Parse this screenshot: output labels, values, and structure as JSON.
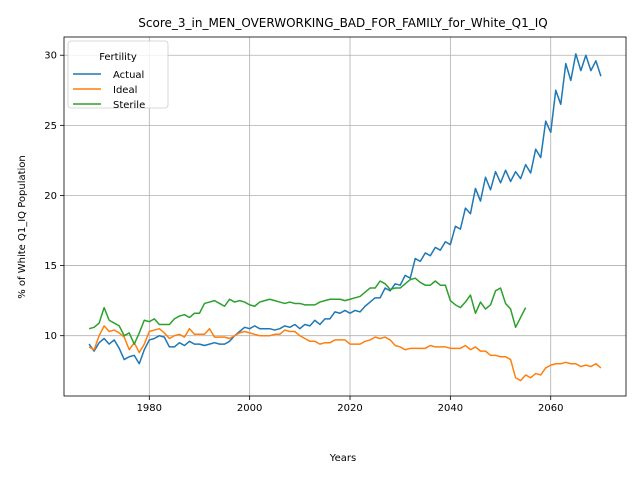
{
  "chart_data": {
    "type": "line",
    "title": "Score_3_in_MEN_OVERWORKING_BAD_FOR_FAMILY_for_White_Q1_IQ",
    "xlabel": "Years",
    "ylabel": "% of White Q1_IQ Population",
    "xlim": [
      1963,
      2075
    ],
    "ylim": [
      5.7,
      31.3
    ],
    "xticks": [
      1980,
      2000,
      2020,
      2040,
      2060
    ],
    "yticks": [
      10,
      15,
      20,
      25,
      30
    ],
    "grid": true,
    "legend": {
      "title": "Fertility",
      "placement": "top-left"
    },
    "series": [
      {
        "name": "Actual",
        "color": "#1f77b4",
        "x": [
          1968,
          1969,
          1970,
          1971,
          1972,
          1973,
          1974,
          1975,
          1976,
          1977,
          1978,
          1979,
          1980,
          1981,
          1982,
          1983,
          1984,
          1985,
          1986,
          1987,
          1988,
          1989,
          1990,
          1991,
          1992,
          1993,
          1994,
          1995,
          1996,
          1997,
          1998,
          1999,
          2000,
          2001,
          2002,
          2003,
          2004,
          2005,
          2006,
          2007,
          2008,
          2009,
          2010,
          2011,
          2012,
          2013,
          2014,
          2015,
          2016,
          2017,
          2018,
          2019,
          2020,
          2021,
          2022,
          2023,
          2024,
          2025,
          2026,
          2027,
          2028,
          2029,
          2030,
          2031,
          2032,
          2033,
          2034,
          2035,
          2036,
          2037,
          2038,
          2039,
          2040,
          2041,
          2042,
          2043,
          2044,
          2045,
          2046,
          2047,
          2048,
          2049,
          2050,
          2051,
          2052,
          2053,
          2054,
          2055,
          2056,
          2057,
          2058,
          2059,
          2060,
          2061,
          2062,
          2063,
          2064,
          2065,
          2066,
          2067,
          2068,
          2069,
          2070
        ],
        "values": [
          9.4,
          8.9,
          9.5,
          9.8,
          9.4,
          9.7,
          9.1,
          8.3,
          8.5,
          8.6,
          8.0,
          9.0,
          9.7,
          9.8,
          10.0,
          9.9,
          9.2,
          9.2,
          9.5,
          9.3,
          9.6,
          9.4,
          9.4,
          9.3,
          9.4,
          9.5,
          9.4,
          9.4,
          9.6,
          10.0,
          10.3,
          10.6,
          10.5,
          10.7,
          10.5,
          10.5,
          10.5,
          10.4,
          10.5,
          10.7,
          10.6,
          10.8,
          10.5,
          10.8,
          10.7,
          11.1,
          10.8,
          11.2,
          11.2,
          11.7,
          11.6,
          11.8,
          11.6,
          11.8,
          11.7,
          12.1,
          12.4,
          12.7,
          12.7,
          13.4,
          13.2,
          13.7,
          13.6,
          14.3,
          14.1,
          15.5,
          15.3,
          15.9,
          15.7,
          16.3,
          16.1,
          16.7,
          16.5,
          17.8,
          17.6,
          19.1,
          18.7,
          20.5,
          19.6,
          21.3,
          20.4,
          21.7,
          20.9,
          21.8,
          21.0,
          21.7,
          21.2,
          22.2,
          21.6,
          23.3,
          22.7,
          25.3,
          24.5,
          27.5,
          26.5,
          29.4,
          28.2,
          30.1,
          28.9,
          30.0,
          28.9,
          29.6,
          28.5
        ]
      },
      {
        "name": "Ideal",
        "color": "#ff7f0e",
        "x": [
          1968,
          1969,
          1970,
          1971,
          1972,
          1973,
          1974,
          1975,
          1976,
          1977,
          1978,
          1979,
          1980,
          1981,
          1982,
          1983,
          1984,
          1985,
          1986,
          1987,
          1988,
          1989,
          1990,
          1991,
          1992,
          1993,
          1994,
          1995,
          1996,
          1997,
          1998,
          1999,
          2000,
          2001,
          2002,
          2003,
          2004,
          2005,
          2006,
          2007,
          2008,
          2009,
          2010,
          2011,
          2012,
          2013,
          2014,
          2015,
          2016,
          2017,
          2018,
          2019,
          2020,
          2021,
          2022,
          2023,
          2024,
          2025,
          2026,
          2027,
          2028,
          2029,
          2030,
          2031,
          2032,
          2033,
          2034,
          2035,
          2036,
          2037,
          2038,
          2039,
          2040,
          2041,
          2042,
          2043,
          2044,
          2045,
          2046,
          2047,
          2048,
          2049,
          2050,
          2051,
          2052,
          2053,
          2054,
          2055,
          2056,
          2057,
          2058,
          2059,
          2060,
          2061,
          2062,
          2063,
          2064,
          2065,
          2066,
          2067,
          2068,
          2069,
          2070
        ],
        "values": [
          9.2,
          9.0,
          10.0,
          10.7,
          10.3,
          10.4,
          10.2,
          9.9,
          9.0,
          9.5,
          8.8,
          9.4,
          10.3,
          10.4,
          10.5,
          10.2,
          9.8,
          10.0,
          10.1,
          9.9,
          10.5,
          10.1,
          10.1,
          10.1,
          10.5,
          9.9,
          9.9,
          9.9,
          9.8,
          10.0,
          10.2,
          10.3,
          10.2,
          10.1,
          10.0,
          10.0,
          10.0,
          10.1,
          10.1,
          10.4,
          10.3,
          10.3,
          10.0,
          9.8,
          9.6,
          9.6,
          9.4,
          9.5,
          9.5,
          9.7,
          9.7,
          9.7,
          9.4,
          9.4,
          9.4,
          9.6,
          9.7,
          9.9,
          9.8,
          9.9,
          9.7,
          9.3,
          9.2,
          9.0,
          9.1,
          9.1,
          9.1,
          9.1,
          9.3,
          9.2,
          9.2,
          9.2,
          9.1,
          9.1,
          9.1,
          9.3,
          9.0,
          9.2,
          8.9,
          8.9,
          8.6,
          8.6,
          8.5,
          8.5,
          8.3,
          7.0,
          6.8,
          7.2,
          7.0,
          7.3,
          7.2,
          7.7,
          7.9,
          8.0,
          8.0,
          8.1,
          8.0,
          8.0,
          7.8,
          7.9,
          7.8,
          8.0,
          7.7
        ]
      },
      {
        "name": "Sterile",
        "color": "#2ca02c",
        "x": [
          1968,
          1969,
          1970,
          1971,
          1972,
          1973,
          1974,
          1975,
          1976,
          1977,
          1978,
          1979,
          1980,
          1981,
          1982,
          1983,
          1984,
          1985,
          1986,
          1987,
          1988,
          1989,
          1990,
          1991,
          1992,
          1993,
          1994,
          1995,
          1996,
          1997,
          1998,
          1999,
          2000,
          2001,
          2002,
          2003,
          2004,
          2005,
          2006,
          2007,
          2008,
          2009,
          2010,
          2011,
          2012,
          2013,
          2014,
          2015,
          2016,
          2017,
          2018,
          2019,
          2020,
          2021,
          2022,
          2023,
          2024,
          2025,
          2026,
          2027,
          2028,
          2029,
          2030,
          2031,
          2032,
          2033,
          2034,
          2035,
          2036,
          2037,
          2038,
          2039,
          2040,
          2041,
          2042,
          2043,
          2044,
          2045,
          2046,
          2047,
          2048,
          2049,
          2050,
          2051,
          2052,
          2053,
          2054,
          2055,
          2056
        ],
        "values": [
          10.5,
          10.6,
          10.9,
          12.0,
          11.1,
          10.9,
          10.7,
          10.0,
          10.2,
          9.4,
          10.2,
          11.1,
          11.0,
          11.2,
          10.8,
          10.8,
          10.8,
          11.2,
          11.4,
          11.5,
          11.3,
          11.6,
          11.6,
          12.3,
          12.4,
          12.5,
          12.3,
          12.1,
          12.6,
          12.4,
          12.5,
          12.4,
          12.2,
          12.1,
          12.4,
          12.5,
          12.6,
          12.5,
          12.4,
          12.3,
          12.4,
          12.3,
          12.3,
          12.2,
          12.2,
          12.2,
          12.4,
          12.5,
          12.6,
          12.6,
          12.6,
          12.5,
          12.6,
          12.7,
          12.8,
          13.1,
          13.4,
          13.4,
          13.9,
          13.7,
          13.3,
          13.4,
          13.4,
          13.7,
          14.0,
          14.1,
          13.8,
          13.6,
          13.6,
          13.9,
          13.6,
          13.6,
          12.5,
          12.2,
          12.0,
          12.4,
          12.9,
          11.6,
          12.4,
          11.9,
          12.2,
          13.2,
          13.4,
          12.3,
          11.9,
          10.6,
          11.3,
          12.0,
          null
        ]
      }
    ]
  }
}
